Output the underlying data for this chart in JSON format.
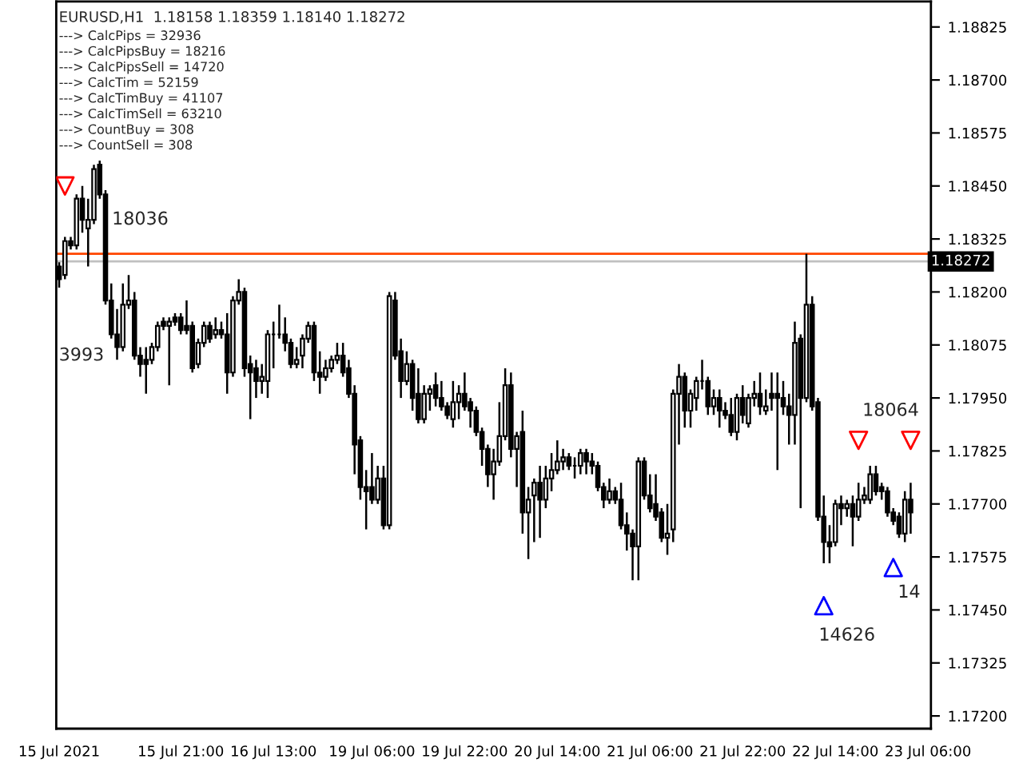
{
  "chart_data": {
    "type": "candlestick",
    "title": "EURUSD,H1  1.18158 1.18359 1.18140 1.18272",
    "annotations": [
      "---> CalcPips = 32936",
      "---> CalcPipsBuy = 18216",
      "---> CalcPipsSell = 14720",
      "---> CalcTim = 52159",
      "---> CalcTimBuy = 41107",
      "---> CalcTimSell = 63210",
      "---> CountBuy = 308",
      "---> CountSell = 308",
      "18036",
      "3993",
      "18064",
      "14626",
      "14"
    ],
    "categories": [
      "15 Jul 2021",
      null,
      null,
      null,
      null,
      null,
      null,
      null,
      null,
      null,
      null,
      null,
      null,
      null,
      null,
      null,
      null,
      null,
      null,
      null,
      null,
      "15 Jul 21:00",
      null,
      null,
      null,
      null,
      null,
      null,
      null,
      null,
      null,
      null,
      null,
      null,
      null,
      null,
      null,
      "16 Jul 13:00",
      null,
      null,
      null,
      null,
      null,
      null,
      null,
      null,
      null,
      null,
      null,
      null,
      null,
      null,
      null,
      null,
      "19 Jul 06:00",
      null,
      null,
      null,
      null,
      null,
      null,
      null,
      null,
      null,
      null,
      null,
      null,
      null,
      null,
      null,
      "19 Jul 22:00",
      null,
      null,
      null,
      null,
      null,
      null,
      null,
      null,
      null,
      null,
      null,
      null,
      null,
      null,
      null,
      "20 Jul 14:00",
      null,
      null,
      null,
      null,
      null,
      null,
      null,
      null,
      null,
      null,
      null,
      null,
      null,
      null,
      null,
      "21 Jul 06:00",
      null,
      null,
      null,
      null,
      null,
      null,
      null,
      null,
      null,
      null,
      null,
      null,
      null,
      null,
      null,
      "21 Jul 22:00",
      null,
      null,
      null,
      null,
      null,
      null,
      null,
      null,
      null,
      null,
      null,
      null,
      null,
      null,
      null,
      "22 Jul 14:00",
      null,
      null,
      null,
      null,
      null,
      null,
      null,
      null,
      null,
      null,
      null,
      null,
      null,
      null,
      null,
      "23 Jul 06:00"
    ],
    "ohlc": [
      [
        1.1826,
        1.1827,
        1.1821,
        1.1823
      ],
      [
        1.1824,
        1.1833,
        1.1823,
        1.1832
      ],
      [
        1.1832,
        1.1833,
        1.183,
        1.1831
      ],
      [
        1.1831,
        1.1843,
        1.183,
        1.1842
      ],
      [
        1.1842,
        1.1845,
        1.1834,
        1.1837
      ],
      [
        1.1835,
        1.1842,
        1.1826,
        1.1837
      ],
      [
        1.1837,
        1.185,
        1.1836,
        1.1849
      ],
      [
        1.185,
        1.1851,
        1.1842,
        1.1843
      ],
      [
        1.1843,
        1.1844,
        1.1817,
        1.1818
      ],
      [
        1.1818,
        1.1822,
        1.1809,
        1.181
      ],
      [
        1.181,
        1.1816,
        1.1804,
        1.1807
      ],
      [
        1.1807,
        1.1822,
        1.1806,
        1.1817
      ],
      [
        1.1817,
        1.1824,
        1.1816,
        1.1818
      ],
      [
        1.1818,
        1.182,
        1.1804,
        1.1805
      ],
      [
        1.1805,
        1.1807,
        1.18,
        1.1803
      ],
      [
        1.1804,
        1.1807,
        1.1796,
        1.1803
      ],
      [
        1.1804,
        1.1808,
        1.1803,
        1.1807
      ],
      [
        1.1807,
        1.1813,
        1.1806,
        1.1812
      ],
      [
        1.1813,
        1.1814,
        1.1811,
        1.1812
      ],
      [
        1.1812,
        1.1814,
        1.1798,
        1.1813
      ],
      [
        1.1814,
        1.1815,
        1.1812,
        1.1813
      ],
      [
        1.1814,
        1.1815,
        1.181,
        1.1811
      ],
      [
        1.1812,
        1.1818,
        1.181,
        1.1811
      ],
      [
        1.1812,
        1.1813,
        1.1801,
        1.1802
      ],
      [
        1.1803,
        1.1809,
        1.1802,
        1.1808
      ],
      [
        1.1808,
        1.1813,
        1.1807,
        1.1812
      ],
      [
        1.1812,
        1.1813,
        1.1808,
        1.1809
      ],
      [
        1.181,
        1.1814,
        1.1809,
        1.1811
      ],
      [
        1.1811,
        1.1813,
        1.1809,
        1.181
      ],
      [
        1.181,
        1.1815,
        1.1796,
        1.1801
      ],
      [
        1.1801,
        1.1819,
        1.18,
        1.1818
      ],
      [
        1.1818,
        1.1823,
        1.1817,
        1.182
      ],
      [
        1.182,
        1.1821,
        1.18,
        1.1802
      ],
      [
        1.1803,
        1.1805,
        1.179,
        1.1801
      ],
      [
        1.1802,
        1.1804,
        1.1795,
        1.1799
      ],
      [
        1.1799,
        1.1803,
        1.1796,
        1.18
      ],
      [
        1.1799,
        1.1811,
        1.1795,
        1.181
      ],
      [
        1.181,
        1.1813,
        1.1802,
        1.181
      ],
      [
        1.181,
        1.1817,
        1.1809,
        1.181
      ],
      [
        1.181,
        1.1814,
        1.1806,
        1.1808
      ],
      [
        1.1808,
        1.1809,
        1.1802,
        1.1803
      ],
      [
        1.1803,
        1.1807,
        1.1802,
        1.1804
      ],
      [
        1.1805,
        1.181,
        1.1802,
        1.1809
      ],
      [
        1.1809,
        1.1813,
        1.1808,
        1.1812
      ],
      [
        1.1812,
        1.1813,
        1.1799,
        1.1801
      ],
      [
        1.1801,
        1.1806,
        1.1796,
        1.18
      ],
      [
        1.18,
        1.1804,
        1.1799,
        1.1802
      ],
      [
        1.1802,
        1.1805,
        1.1801,
        1.1804
      ],
      [
        1.1804,
        1.1808,
        1.1803,
        1.1805
      ],
      [
        1.1805,
        1.1808,
        1.18,
        1.1801
      ],
      [
        1.1802,
        1.1804,
        1.1795,
        1.1796
      ],
      [
        1.1796,
        1.1798,
        1.1777,
        1.1784
      ],
      [
        1.1785,
        1.1786,
        1.1771,
        1.1774
      ],
      [
        1.1774,
        1.1778,
        1.1764,
        1.1773
      ],
      [
        1.1774,
        1.1782,
        1.177,
        1.1771
      ],
      [
        1.1771,
        1.1779,
        1.177,
        1.1776
      ],
      [
        1.1776,
        1.1779,
        1.1764,
        1.1765
      ],
      [
        1.1765,
        1.182,
        1.1764,
        1.1819
      ],
      [
        1.1818,
        1.182,
        1.1804,
        1.1805
      ],
      [
        1.1806,
        1.1809,
        1.1795,
        1.1799
      ],
      [
        1.1799,
        1.1806,
        1.1798,
        1.1803
      ],
      [
        1.1803,
        1.1804,
        1.1792,
        1.1795
      ],
      [
        1.1796,
        1.1802,
        1.1789,
        1.179
      ],
      [
        1.179,
        1.1798,
        1.1789,
        1.1796
      ],
      [
        1.1796,
        1.1798,
        1.1792,
        1.1797
      ],
      [
        1.1798,
        1.1801,
        1.1793,
        1.1795
      ],
      [
        1.1795,
        1.1799,
        1.1792,
        1.1793
      ],
      [
        1.1793,
        1.1794,
        1.179,
        1.1791
      ],
      [
        1.179,
        1.1799,
        1.1788,
        1.1794
      ],
      [
        1.1794,
        1.1798,
        1.179,
        1.1796
      ],
      [
        1.1796,
        1.1801,
        1.1792,
        1.1793
      ],
      [
        1.1794,
        1.1795,
        1.1788,
        1.1792
      ],
      [
        1.1792,
        1.1793,
        1.1786,
        1.1787
      ],
      [
        1.1787,
        1.1788,
        1.1779,
        1.1783
      ],
      [
        1.1783,
        1.1784,
        1.1774,
        1.1777
      ],
      [
        1.1777,
        1.1783,
        1.1771,
        1.178
      ],
      [
        1.178,
        1.1794,
        1.1779,
        1.1786
      ],
      [
        1.1786,
        1.1802,
        1.1785,
        1.1798
      ],
      [
        1.1798,
        1.1801,
        1.1781,
        1.1783
      ],
      [
        1.1783,
        1.1787,
        1.1774,
        1.1786
      ],
      [
        1.1787,
        1.1792,
        1.1763,
        1.1768
      ],
      [
        1.1768,
        1.1774,
        1.1757,
        1.1771
      ],
      [
        1.1772,
        1.1776,
        1.1761,
        1.1775
      ],
      [
        1.1775,
        1.1779,
        1.1762,
        1.1771
      ],
      [
        1.1771,
        1.1779,
        1.1769,
        1.1776
      ],
      [
        1.1776,
        1.1782,
        1.1773,
        1.1778
      ],
      [
        1.1778,
        1.1785,
        1.1777,
        1.178
      ],
      [
        1.178,
        1.1783,
        1.1778,
        1.1781
      ],
      [
        1.1781,
        1.1782,
        1.1778,
        1.1779
      ],
      [
        1.1779,
        1.1781,
        1.1776,
        1.1779
      ],
      [
        1.1779,
        1.1783,
        1.1777,
        1.1782
      ],
      [
        1.1782,
        1.1783,
        1.1777,
        1.178
      ],
      [
        1.178,
        1.1782,
        1.1777,
        1.1779
      ],
      [
        1.1779,
        1.178,
        1.1773,
        1.1774
      ],
      [
        1.1774,
        1.1775,
        1.1769,
        1.1771
      ],
      [
        1.1771,
        1.1776,
        1.177,
        1.1773
      ],
      [
        1.1773,
        1.1774,
        1.177,
        1.1771
      ],
      [
        1.1771,
        1.1775,
        1.1764,
        1.1765
      ],
      [
        1.1765,
        1.1768,
        1.1759,
        1.1763
      ],
      [
        1.1763,
        1.1764,
        1.1752,
        1.176
      ],
      [
        1.176,
        1.1781,
        1.1752,
        1.178
      ],
      [
        1.178,
        1.1781,
        1.1771,
        1.1772
      ],
      [
        1.1772,
        1.1777,
        1.1768,
        1.1769
      ],
      [
        1.177,
        1.1777,
        1.1766,
        1.1767
      ],
      [
        1.1768,
        1.1769,
        1.1761,
        1.1762
      ],
      [
        1.1762,
        1.177,
        1.1758,
        1.1763
      ],
      [
        1.1764,
        1.1797,
        1.1761,
        1.1796
      ],
      [
        1.1796,
        1.1803,
        1.1784,
        1.18
      ],
      [
        1.18,
        1.1801,
        1.1788,
        1.1792
      ],
      [
        1.1792,
        1.1797,
        1.1788,
        1.1796
      ],
      [
        1.1795,
        1.18,
        1.1792,
        1.1799
      ],
      [
        1.1799,
        1.1804,
        1.1797,
        1.1799
      ],
      [
        1.1799,
        1.18,
        1.1791,
        1.1793
      ],
      [
        1.1793,
        1.1797,
        1.1791,
        1.1795
      ],
      [
        1.1795,
        1.1797,
        1.1788,
        1.1792
      ],
      [
        1.1792,
        1.1794,
        1.179,
        1.1791
      ],
      [
        1.1791,
        1.1795,
        1.1786,
        1.1787
      ],
      [
        1.1787,
        1.1796,
        1.1785,
        1.1795
      ],
      [
        1.1795,
        1.1798,
        1.1789,
        1.1791
      ],
      [
        1.1789,
        1.1796,
        1.1788,
        1.1795
      ],
      [
        1.1795,
        1.1799,
        1.1793,
        1.1796
      ],
      [
        1.1796,
        1.1801,
        1.1791,
        1.1793
      ],
      [
        1.1792,
        1.1797,
        1.1791,
        1.1793
      ],
      [
        1.1796,
        1.1801,
        1.1792,
        1.1795
      ],
      [
        1.1796,
        1.1801,
        1.1778,
        1.1795
      ],
      [
        1.1795,
        1.1799,
        1.1791,
        1.1793
      ],
      [
        1.1793,
        1.1796,
        1.1784,
        1.1791
      ],
      [
        1.1791,
        1.1813,
        1.1784,
        1.1808
      ],
      [
        1.1809,
        1.181,
        1.1769,
        1.1795
      ],
      [
        1.1795,
        1.1829,
        1.1794,
        1.1817
      ],
      [
        1.1817,
        1.1819,
        1.1792,
        1.1793
      ],
      [
        1.1794,
        1.1795,
        1.1766,
        1.1767
      ],
      [
        1.1767,
        1.1772,
        1.1756,
        1.1761
      ],
      [
        1.1761,
        1.1765,
        1.1756,
        1.176
      ],
      [
        1.1761,
        1.1771,
        1.176,
        1.177
      ],
      [
        1.177,
        1.1772,
        1.1765,
        1.1769
      ],
      [
        1.1769,
        1.1771,
        1.1767,
        1.177
      ],
      [
        1.177,
        1.1772,
        1.176,
        1.1767
      ],
      [
        1.1767,
        1.1775,
        1.1766,
        1.1771
      ],
      [
        1.1771,
        1.1774,
        1.177,
        1.1772
      ],
      [
        1.1771,
        1.1779,
        1.177,
        1.1777
      ],
      [
        1.1777,
        1.1779,
        1.1772,
        1.1773
      ],
      [
        1.1774,
        1.1775,
        1.1771,
        1.1773
      ],
      [
        1.1773,
        1.1774,
        1.1767,
        1.1768
      ],
      [
        1.1768,
        1.1769,
        1.1765,
        1.1766
      ],
      [
        1.1767,
        1.1768,
        1.1762,
        1.1763
      ],
      [
        1.1763,
        1.1773,
        1.1761,
        1.1771
      ],
      [
        1.1771,
        1.1775,
        1.1763,
        1.1768
      ],
      null,
      null,
      null
    ],
    "series": [
      {
        "type": "scatter",
        "color": "#ff0000",
        "marker": "triangle_down",
        "values": [
          null,
          1.1845,
          null,
          null,
          null,
          null,
          null,
          null,
          null,
          null,
          null,
          null,
          null,
          null,
          null,
          null,
          null,
          null,
          null,
          null,
          null,
          null,
          null,
          null,
          null,
          null,
          null,
          null,
          null,
          null,
          null,
          null,
          null,
          null,
          null,
          null,
          null,
          null,
          null,
          null,
          null,
          null,
          null,
          null,
          null,
          null,
          null,
          null,
          null,
          null,
          null,
          null,
          null,
          null,
          null,
          null,
          null,
          null,
          null,
          null,
          null,
          null,
          null,
          null,
          null,
          null,
          null,
          null,
          null,
          null,
          null,
          null,
          null,
          null,
          null,
          null,
          null,
          null,
          null,
          null,
          null,
          null,
          null,
          null,
          null,
          null,
          null,
          null,
          null,
          null,
          null,
          null,
          null,
          null,
          null,
          null,
          null,
          null,
          null,
          null,
          null,
          null,
          null,
          null,
          null,
          null,
          null,
          null,
          null,
          null,
          null,
          null,
          null,
          null,
          null,
          null,
          null,
          null,
          null,
          null,
          null,
          null,
          null,
          null,
          null,
          null,
          null,
          null,
          null,
          null,
          null,
          null,
          null,
          null,
          null,
          null,
          null,
          null,
          1.1785,
          null,
          null,
          null,
          null,
          null,
          null,
          null,
          null,
          1.1785,
          null,
          null,
          null
        ]
      },
      {
        "type": "scatter",
        "color": "#0000ff",
        "marker": "triangle",
        "values": [
          null,
          null,
          null,
          null,
          null,
          null,
          null,
          null,
          null,
          null,
          null,
          null,
          null,
          null,
          null,
          null,
          null,
          null,
          null,
          null,
          null,
          null,
          null,
          null,
          null,
          null,
          null,
          null,
          null,
          null,
          null,
          null,
          null,
          null,
          null,
          null,
          null,
          null,
          null,
          null,
          null,
          null,
          null,
          null,
          null,
          null,
          null,
          null,
          null,
          null,
          null,
          null,
          null,
          null,
          null,
          null,
          null,
          null,
          null,
          null,
          null,
          null,
          null,
          null,
          null,
          null,
          null,
          null,
          null,
          null,
          null,
          null,
          null,
          null,
          null,
          null,
          null,
          null,
          null,
          null,
          null,
          null,
          null,
          null,
          null,
          null,
          null,
          null,
          null,
          null,
          null,
          null,
          null,
          null,
          null,
          null,
          null,
          null,
          null,
          null,
          null,
          null,
          null,
          null,
          null,
          null,
          null,
          null,
          null,
          null,
          null,
          null,
          null,
          null,
          null,
          null,
          null,
          null,
          null,
          null,
          null,
          null,
          null,
          null,
          null,
          null,
          null,
          null,
          null,
          null,
          null,
          null,
          1.1746,
          null,
          null,
          null,
          null,
          null,
          null,
          null,
          null,
          null,
          null,
          null,
          1.1755,
          null,
          null,
          null,
          null,
          null,
          null
        ]
      }
    ],
    "ylim": [
      1.1717,
      1.18885
    ],
    "yticks": [
      {
        "value": 1.172,
        "label": "1.17200"
      },
      {
        "value": 1.17325,
        "label": "1.17325"
      },
      {
        "value": 1.1745,
        "label": "1.17450"
      },
      {
        "value": 1.17575,
        "label": "1.17575"
      },
      {
        "value": 1.177,
        "label": "1.17700"
      },
      {
        "value": 1.17825,
        "label": "1.17825"
      },
      {
        "value": 1.1795,
        "label": "1.17950"
      },
      {
        "value": 1.18075,
        "label": "1.18075"
      },
      {
        "value": 1.182,
        "label": "1.18200"
      },
      {
        "value": 1.18325,
        "label": "1.18325"
      },
      {
        "value": 1.1845,
        "label": "1.18450"
      },
      {
        "value": 1.18575,
        "label": "1.18575"
      },
      {
        "value": 1.187,
        "label": "1.18700"
      },
      {
        "value": 1.18825,
        "label": "1.18825"
      }
    ],
    "ref_lines": [
      {
        "axis": "y",
        "value": 1.1829,
        "color": "#ff4500"
      },
      {
        "axis": "y",
        "value": 1.18272,
        "label": "1.18272",
        "color": "#c0c0c0"
      }
    ]
  }
}
